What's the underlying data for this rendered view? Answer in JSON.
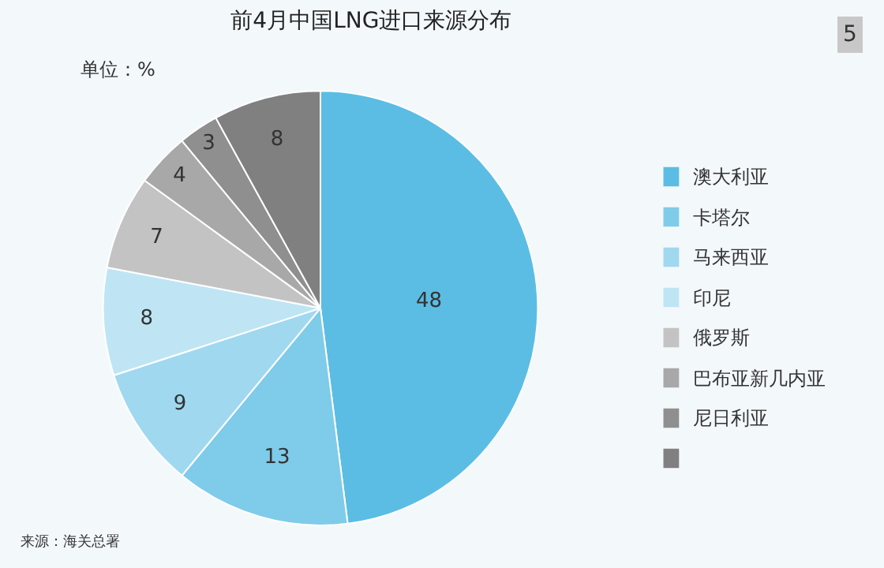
{
  "chart_data": {
    "type": "pie",
    "title": "前4月中国LNG进口来源分布",
    "categories": [
      "澳大利亚",
      "卡塔尔",
      "马来西亚",
      "印尼",
      "俄罗斯",
      "巴布亚新几内亚",
      "尼日利亚",
      null
    ],
    "values": [
      48,
      13,
      9,
      8,
      7,
      4,
      3,
      8
    ],
    "colors": [
      "#5bbde4",
      "#7fcbea",
      "#a0d8ef",
      "#bfe5f5",
      "#c3c3c3",
      "#a8a8a8",
      "#8f8f8f",
      "#808080"
    ],
    "data_labels": true,
    "legend": "right",
    "annotations": [
      "单位：%",
      "5",
      "来源：海关总署"
    ]
  }
}
